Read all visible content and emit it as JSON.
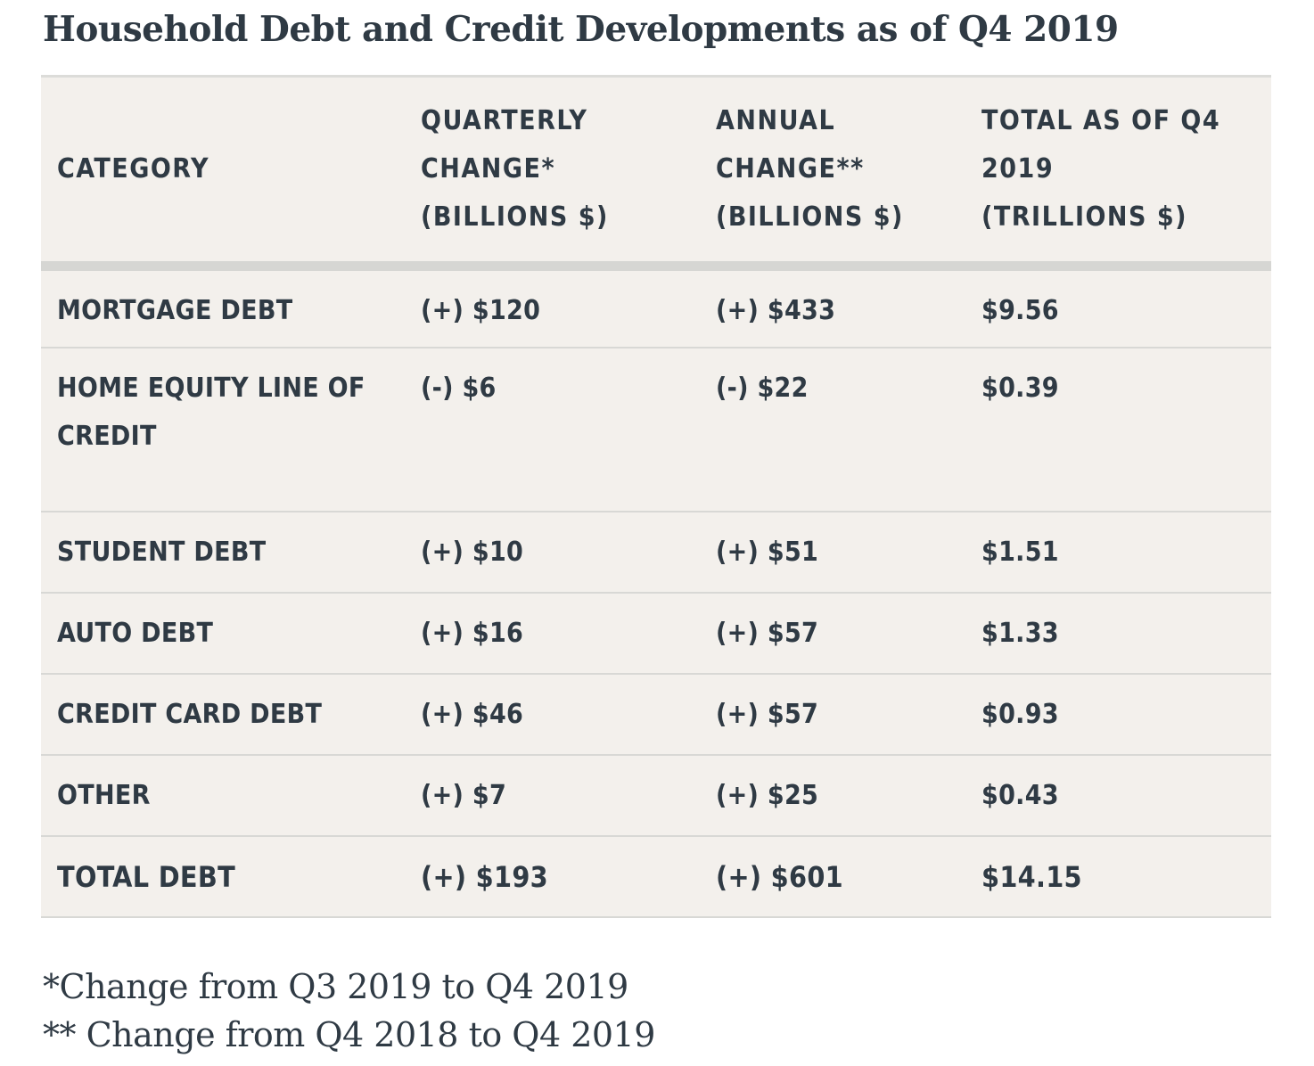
{
  "title": "Household Debt and Credit Developments as of Q4 2019",
  "table": {
    "headers": [
      [
        "CATEGORY"
      ],
      [
        "QUARTERLY",
        "CHANGE*",
        "(BILLIONS $)"
      ],
      [
        "ANNUAL",
        "CHANGE**",
        "(BILLIONS $)"
      ],
      [
        "TOTAL AS OF Q4",
        "2019",
        "(TRILLIONS $)"
      ]
    ],
    "rows": [
      [
        "MORTGAGE DEBT",
        "(+) $120",
        "(+) $433",
        "$9.56"
      ],
      [
        "HOME EQUITY LINE OF CREDIT",
        "(-) $6",
        "(-) $22",
        "$0.39"
      ],
      [
        "STUDENT DEBT",
        "(+) $10",
        "(+) $51",
        "$1.51"
      ],
      [
        "AUTO DEBT",
        "(+) $16",
        "(+) $57",
        "$1.33"
      ],
      [
        "CREDIT CARD DEBT",
        "(+) $46",
        "(+) $57",
        "$0.93"
      ],
      [
        "OTHER",
        "(+) $7",
        "(+) $25",
        "$0.43"
      ],
      [
        "TOTAL DEBT",
        "(+) $193",
        "(+) $601",
        "$14.15"
      ]
    ]
  },
  "footnotes": [
    "*Change from Q3 2019 to Q4 2019",
    "** Change from Q4 2018 to Q4 2019"
  ]
}
